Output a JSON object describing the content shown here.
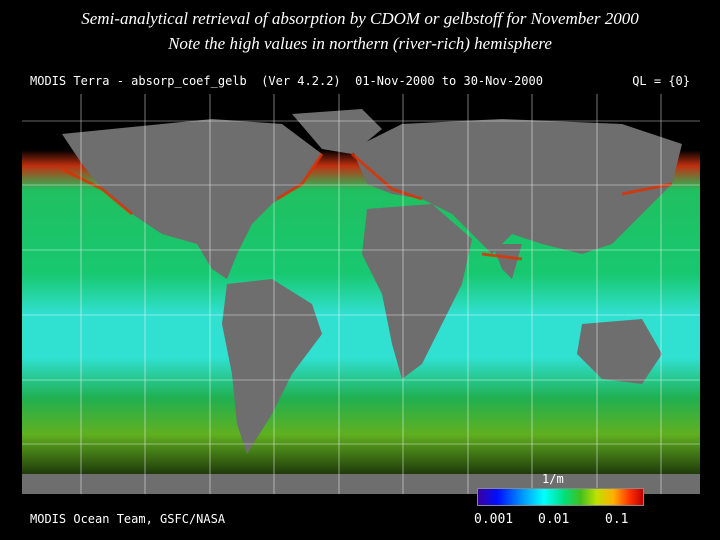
{
  "caption": {
    "line1": "Semi-analytical retrieval of absorption by CDOM or gelbstoff for November 2000",
    "line2": "Note the high values in northern (river-rich) hemisphere"
  },
  "map": {
    "header_left": "MODIS Terra - absorp_coef_gelb  (Ver 4.2.2)  01-Nov-2000 to 30-Nov-2000",
    "header_right": "QL = {0}",
    "footer": "MODIS Ocean Team, GSFC/NASA",
    "colorbar": {
      "unit": "1/m",
      "ticks": [
        "0.001",
        "0.01",
        "0.1"
      ]
    },
    "colors": {
      "land": "#6e6e6e",
      "ocean_base": "#18c060",
      "tropics_low": "#30e0d0",
      "coastal_high": "#e03000",
      "no_data": "#000000",
      "grid": "#ffffff"
    }
  }
}
